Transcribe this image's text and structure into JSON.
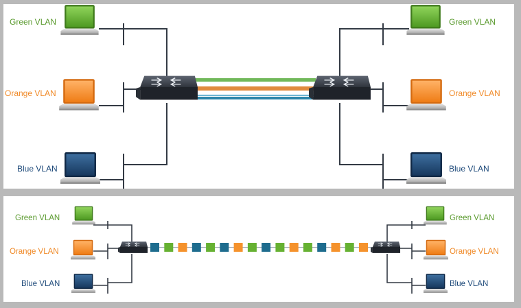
{
  "top_panel": {
    "left_labels": {
      "green": "Green VLAN",
      "orange": "Orange VLAN",
      "blue": "Blue VLAN"
    },
    "right_labels": {
      "green": "Green VLAN",
      "orange": "Orange VLAN",
      "blue": "Blue VLAN"
    }
  },
  "bottom_panel": {
    "left_labels": {
      "green": "Green VLAN",
      "orange": "Orange VLAN",
      "blue": "Blue VLAN"
    },
    "right_labels": {
      "green": "Green VLAN",
      "orange": "Orange VLAN",
      "blue": "Blue VLAN"
    }
  },
  "colors": {
    "green": "#66b132",
    "orange": "#f5922c",
    "blue": "#1e6c8e",
    "link_green": "#71b85a",
    "link_orange": "#e08a3d",
    "link_blue": "#3a8fb0",
    "wire": "#333a44"
  },
  "icons": [
    "laptop-icon",
    "switch-icon"
  ]
}
